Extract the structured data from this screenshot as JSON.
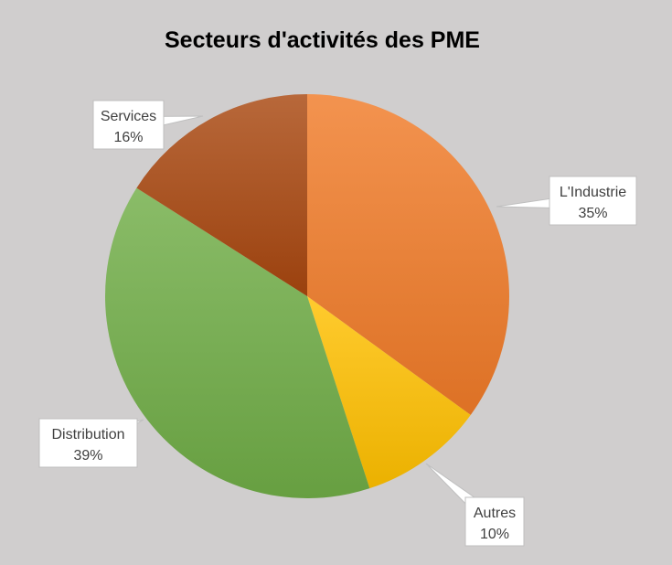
{
  "chart_data": {
    "type": "pie",
    "title": "Secteurs d'activités des PME",
    "slices": [
      {
        "label": "L'Industrie",
        "value": 35,
        "value_label": "35%",
        "color": "#f07b28"
      },
      {
        "label": "Autres",
        "value": 10,
        "value_label": "10%",
        "color": "#ffc000"
      },
      {
        "label": "Distribution",
        "value": 39,
        "value_label": "39%",
        "color": "#70ad47"
      },
      {
        "label": "Services",
        "value": 16,
        "value_label": "16%",
        "color": "#a9470f"
      }
    ],
    "start_angle": "12 o'clock",
    "direction": "clockwise",
    "legend": "none",
    "data_labels": "callouts"
  }
}
